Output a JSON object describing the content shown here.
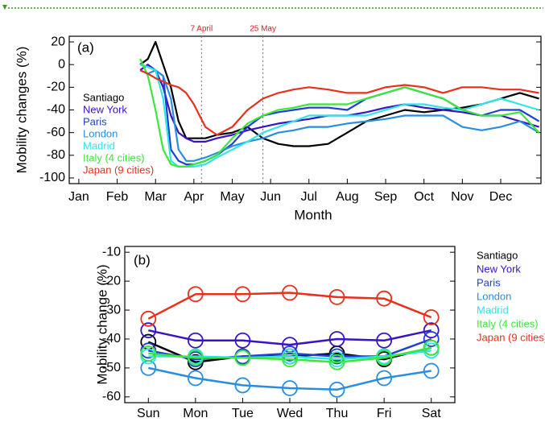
{
  "chart_data": [
    {
      "type": "line",
      "panel": "(a)",
      "x_label": "Month",
      "y_label": "Mobility changes (%)",
      "x": [
        2.6,
        2.8,
        3.0,
        3.2,
        3.4,
        3.6,
        3.8,
        4.0,
        4.3,
        4.6,
        5.0,
        5.4,
        5.8,
        6.2,
        6.6,
        7.0,
        7.5,
        8.0,
        8.5,
        9.0,
        9.5,
        10.0,
        10.5,
        11.0,
        11.5,
        12.0,
        12.5,
        13.0
      ],
      "xlim": [
        0.75,
        13.05
      ],
      "xticks": [
        {
          "value": 1,
          "label": "Jan"
        },
        {
          "value": 2,
          "label": "Feb"
        },
        {
          "value": 3,
          "label": "Mar"
        },
        {
          "value": 4,
          "label": "Apr"
        },
        {
          "value": 5,
          "label": "May"
        },
        {
          "value": 6,
          "label": "Jun"
        },
        {
          "value": 7,
          "label": "Jul"
        },
        {
          "value": 8,
          "label": "Aug"
        },
        {
          "value": 9,
          "label": "Sep"
        },
        {
          "value": 10,
          "label": "Oct"
        },
        {
          "value": 11,
          "label": "Nov"
        },
        {
          "value": 12,
          "label": "Dec"
        }
      ],
      "ylim": [
        -105,
        25
      ],
      "yticks": [
        -100,
        -80,
        -60,
        -40,
        -20,
        0,
        20
      ],
      "legend": "upper left",
      "annotations": [
        {
          "text": "7 April",
          "x": 4.2
        },
        {
          "text": "25 May",
          "x": 5.8
        }
      ],
      "series": [
        {
          "name": "Santiago",
          "color": "#000000",
          "values": [
            0,
            5,
            20,
            0,
            -20,
            -50,
            -65,
            -65,
            -65,
            -62,
            -60,
            -55,
            -65,
            -70,
            -72,
            -72,
            -70,
            -60,
            -50,
            -45,
            -40,
            -42,
            -40,
            -38,
            -35,
            -30,
            -25,
            -30
          ]
        },
        {
          "name": "New York",
          "color": "#3a14c4",
          "values": [
            -5,
            0,
            -5,
            -20,
            -45,
            -60,
            -65,
            -68,
            -68,
            -65,
            -62,
            -58,
            -55,
            -52,
            -50,
            -48,
            -45,
            -45,
            -42,
            -38,
            -35,
            -38,
            -40,
            -42,
            -45,
            -45,
            -50,
            -55
          ]
        },
        {
          "name": "Paris",
          "color": "#1f3fd6",
          "values": [
            0,
            -2,
            -5,
            -10,
            -75,
            -85,
            -88,
            -88,
            -85,
            -80,
            -70,
            -55,
            -45,
            -42,
            -40,
            -38,
            -38,
            -40,
            -30,
            -25,
            -20,
            -25,
            -30,
            -40,
            -45,
            -40,
            -40,
            -50
          ]
        },
        {
          "name": "London",
          "color": "#2a8ee0",
          "values": [
            -5,
            -8,
            -5,
            -10,
            -30,
            -75,
            -85,
            -85,
            -82,
            -78,
            -72,
            -68,
            -65,
            -60,
            -58,
            -55,
            -55,
            -52,
            -50,
            -48,
            -45,
            -45,
            -45,
            -55,
            -58,
            -55,
            -50,
            -60
          ]
        },
        {
          "name": "Madrid",
          "color": "#2ee6e6",
          "values": [
            0,
            -2,
            -5,
            -30,
            -85,
            -90,
            -90,
            -90,
            -88,
            -82,
            -75,
            -68,
            -60,
            -55,
            -50,
            -45,
            -45,
            -45,
            -45,
            -40,
            -35,
            -35,
            -38,
            -40,
            -35,
            -30,
            -35,
            -40
          ]
        },
        {
          "name": "Italy (4 cities)",
          "color": "#3ae83a",
          "values": [
            5,
            -10,
            -40,
            -75,
            -88,
            -90,
            -90,
            -88,
            -85,
            -80,
            -65,
            -52,
            -45,
            -40,
            -38,
            -35,
            -35,
            -35,
            -30,
            -25,
            -20,
            -25,
            -30,
            -40,
            -45,
            -45,
            -42,
            -60
          ]
        },
        {
          "name": "Japan (9 cities)",
          "color": "#e8301a",
          "values": [
            -5,
            -8,
            -12,
            -15,
            -18,
            -20,
            -25,
            -35,
            -55,
            -62,
            -55,
            -40,
            -30,
            -25,
            -22,
            -20,
            -22,
            -25,
            -25,
            -20,
            -18,
            -20,
            -25,
            -20,
            -20,
            -22,
            -22,
            -25
          ]
        }
      ]
    },
    {
      "type": "line",
      "panel": "(b)",
      "y_label": "Mobility change (%)",
      "marker": "circle",
      "categories": [
        "Sun",
        "Mon",
        "Tue",
        "Wed",
        "Thu",
        "Fri",
        "Sat"
      ],
      "ylim": [
        -62,
        -8
      ],
      "yticks": [
        -60,
        -50,
        -40,
        -30,
        -20,
        -10
      ],
      "legend": "right",
      "series": [
        {
          "name": "Santiago",
          "color": "#000000",
          "values": [
            -41,
            -48,
            -46,
            -46,
            -45,
            -47,
            -43
          ]
        },
        {
          "name": "New York",
          "color": "#3a14c4",
          "values": [
            -37,
            -40.5,
            -40.5,
            -42,
            -40,
            -40.5,
            -37
          ]
        },
        {
          "name": "Paris",
          "color": "#1f3fd6",
          "values": [
            -44,
            -47,
            -46,
            -45,
            -46,
            -46,
            -40
          ]
        },
        {
          "name": "London",
          "color": "#2a8ee0",
          "values": [
            -50,
            -53.5,
            -56,
            -57,
            -57.5,
            -53.5,
            -51
          ]
        },
        {
          "name": "Madrid",
          "color": "#2ee6e6",
          "values": [
            -46,
            -46,
            -46.5,
            -46,
            -47,
            -46,
            -44
          ]
        },
        {
          "name": "Italy (4 cities)",
          "color": "#3ae83a",
          "values": [
            -45,
            -46.5,
            -46.5,
            -47,
            -48,
            -46.5,
            -43
          ]
        },
        {
          "name": "Japan (9 cities)",
          "color": "#e8301a",
          "values": [
            -33,
            -24.5,
            -24.5,
            -24,
            -25.5,
            -26,
            -32.5
          ]
        }
      ]
    }
  ]
}
